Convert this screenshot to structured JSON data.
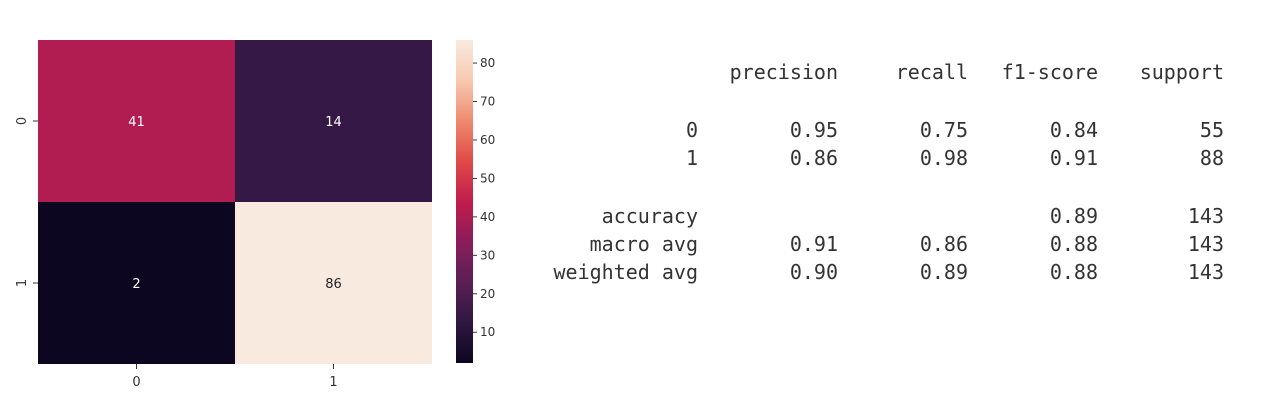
{
  "chart_data": [
    {
      "type": "heatmap",
      "x_tick_labels": [
        "0",
        "1"
      ],
      "y_tick_labels": [
        "0",
        "1"
      ],
      "matrix": [
        [
          41,
          14
        ],
        [
          2,
          86
        ]
      ],
      "annotations": [
        "41",
        "14",
        "2",
        "86"
      ],
      "colorbar": {
        "ticks": [
          10,
          20,
          30,
          40,
          50,
          60,
          70,
          80
        ],
        "tick_labels": [
          "10",
          "20",
          "30",
          "40",
          "50",
          "60",
          "70",
          "80"
        ],
        "range": [
          2,
          86
        ]
      },
      "colormap": [
        "#0d0620",
        "#2f1742",
        "#5a1f55",
        "#8a1d5a",
        "#c11d4d",
        "#e04a47",
        "#ee8a70",
        "#f7c9b0",
        "#f9eadf"
      ],
      "annotation_colors": {
        "light_cells": "#262626",
        "dark_cells": "#ffffff"
      }
    },
    {
      "type": "table",
      "columns": [
        "",
        "precision",
        "recall",
        "f1-score",
        "support"
      ],
      "rows": [
        [
          "0",
          "0.95",
          "0.75",
          "0.84",
          "55"
        ],
        [
          "1",
          "0.86",
          "0.98",
          "0.91",
          "88"
        ],
        [
          "",
          "",
          "",
          "",
          ""
        ],
        [
          "accuracy",
          "",
          "",
          "0.89",
          "143"
        ],
        [
          "macro avg",
          "0.91",
          "0.86",
          "0.88",
          "143"
        ],
        [
          "weighted avg",
          "0.90",
          "0.89",
          "0.88",
          "143"
        ]
      ]
    }
  ]
}
